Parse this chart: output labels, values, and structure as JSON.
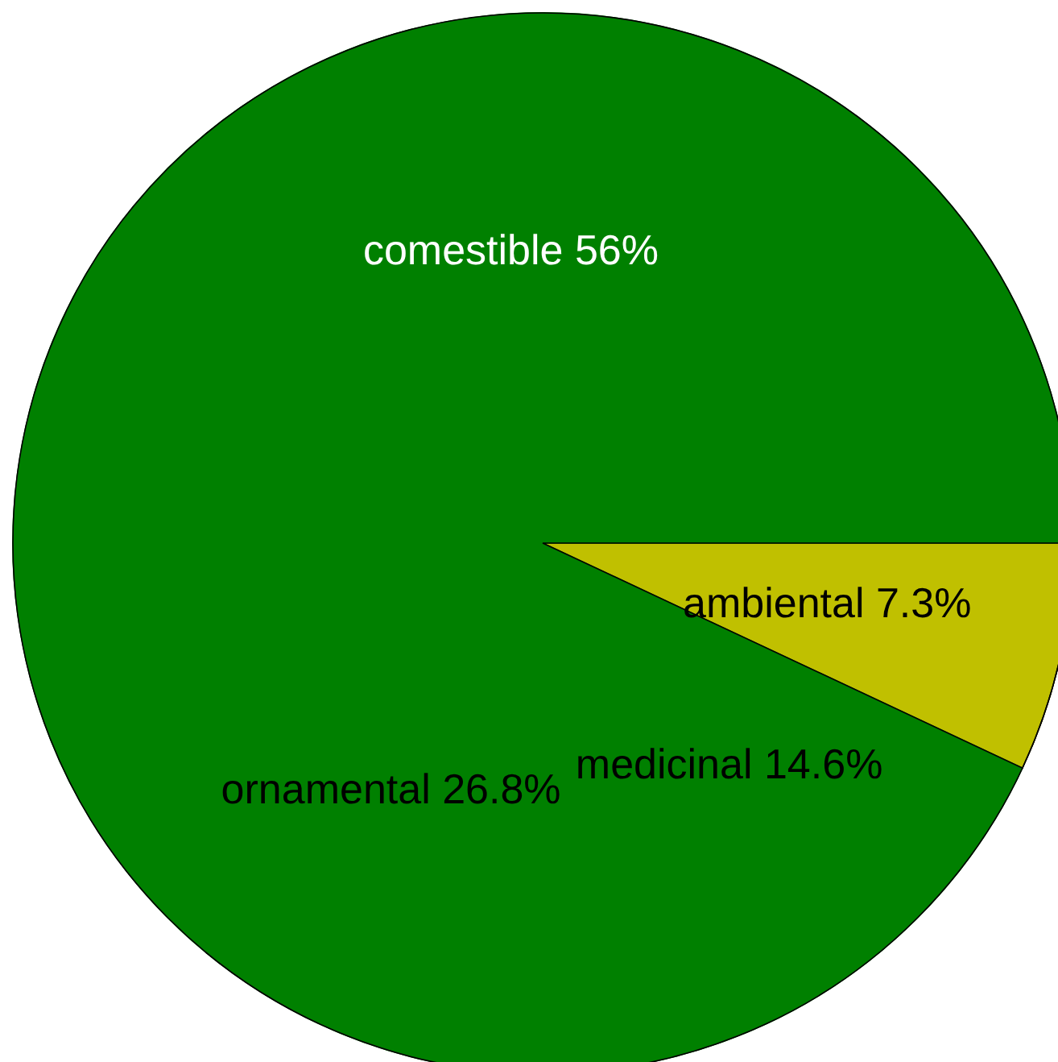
{
  "chart_data": {
    "type": "pie",
    "categories": [
      "ambiental",
      "medicinal",
      "ornamental",
      "comestible"
    ],
    "values": [
      7.3,
      14.6,
      26.8,
      56
    ],
    "colors": [
      "#c0c000",
      "#008000",
      "#008000",
      "#008000"
    ],
    "value_labels": [
      "7.3%",
      "14.6%",
      "26.8%",
      "56%"
    ]
  }
}
